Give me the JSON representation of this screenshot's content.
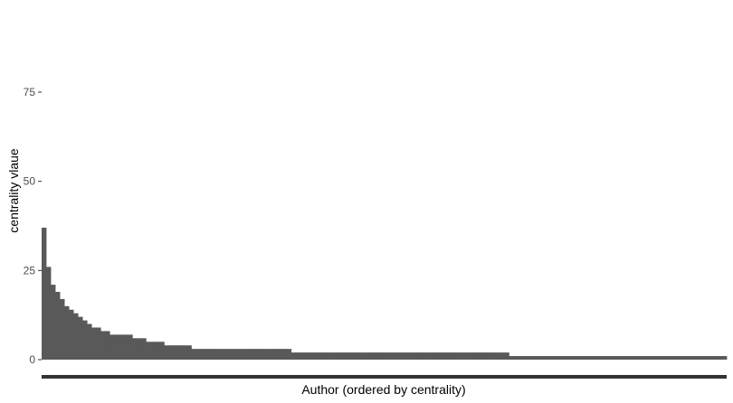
{
  "chart_data": {
    "type": "bar",
    "title": "",
    "xlabel": "Author (ordered by centrality)",
    "ylabel": "centrality vlaue",
    "ylim": [
      0,
      90
    ],
    "yticks": [
      0,
      25,
      50,
      75
    ],
    "grid": false,
    "legend": "none",
    "bar_color": "#595959",
    "axis_color": "#333333",
    "values": [
      37,
      26,
      21,
      19,
      17,
      15,
      14,
      13,
      12,
      11,
      10,
      9,
      9,
      8,
      8,
      7,
      7,
      7,
      7,
      7,
      6,
      6,
      6,
      5,
      5,
      5,
      5,
      4,
      4,
      4,
      4,
      4,
      4,
      3,
      3,
      3,
      3,
      3,
      3,
      3,
      3,
      3,
      3,
      3,
      3,
      3,
      3,
      3,
      3,
      3,
      3,
      3,
      3,
      3,
      3,
      2,
      2,
      2,
      2,
      2,
      2,
      2,
      2,
      2,
      2,
      2,
      2,
      2,
      2,
      2,
      2,
      2,
      2,
      2,
      2,
      2,
      2,
      2,
      2,
      2,
      2,
      2,
      2,
      2,
      2,
      2,
      2,
      2,
      2,
      2,
      2,
      2,
      2,
      2,
      2,
      2,
      2,
      2,
      2,
      2,
      2,
      2,
      2,
      1,
      1,
      1,
      1,
      1,
      1,
      1,
      1,
      1,
      1,
      1,
      1,
      1,
      1,
      1,
      1,
      1,
      1,
      1,
      1,
      1,
      1,
      1,
      1,
      1,
      1,
      1,
      1,
      1,
      1,
      1,
      1,
      1,
      1,
      1,
      1,
      1,
      1,
      1,
      1,
      1,
      1,
      1,
      1,
      1,
      1,
      1,
      1
    ]
  }
}
